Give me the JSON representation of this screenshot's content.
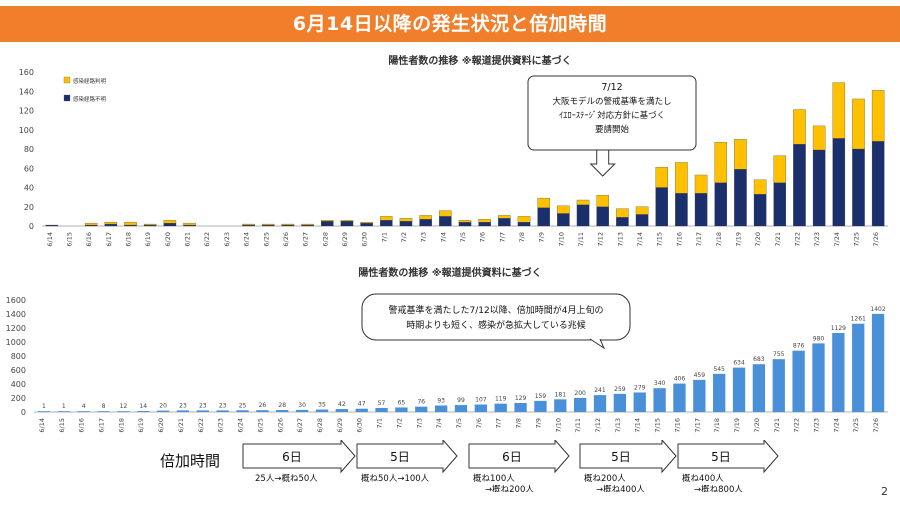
{
  "header": {
    "title": "6月14日以降の発生状況と倍加時間"
  },
  "page_number": "2",
  "colors": {
    "banner": "#f07e2b",
    "stack_bottom": "#1a2f6b",
    "stack_top": "#ffc000",
    "line_bar": "#4a90d9"
  },
  "chart_data": [
    {
      "type": "bar",
      "title": "陽性者数の推移 ※報道提供資料に基づく",
      "stacked": true,
      "ylim": [
        0,
        160
      ],
      "yticks": [
        0,
        20,
        40,
        60,
        80,
        100,
        120,
        140,
        160
      ],
      "grid": false,
      "legend_position": "top-left",
      "categories": [
        "6/14",
        "6/15",
        "6/16",
        "6/17",
        "6/18",
        "6/19",
        "6/20",
        "6/21",
        "6/22",
        "6/23",
        "6/24",
        "6/25",
        "6/26",
        "6/27",
        "6/28",
        "6/29",
        "6/30",
        "7/1",
        "7/2",
        "7/3",
        "7/4",
        "7/5",
        "7/6",
        "7/7",
        "7/8",
        "7/9",
        "7/10",
        "7/11",
        "7/12",
        "7/13",
        "7/14",
        "7/15",
        "7/16",
        "7/17",
        "7/18",
        "7/19",
        "7/20",
        "7/21",
        "7/22",
        "7/23",
        "7/24",
        "7/25",
        "7/26"
      ],
      "series": [
        {
          "name": "感染経路不明",
          "color": "#1a2f6b",
          "values": [
            1,
            0,
            1,
            2,
            1,
            1,
            3,
            1,
            0,
            0,
            1,
            1,
            1,
            1,
            5,
            5,
            3,
            6,
            5,
            7,
            10,
            4,
            4,
            8,
            4,
            19,
            13,
            22,
            20,
            9,
            12,
            40,
            34,
            34,
            45,
            59,
            33,
            45,
            85,
            79,
            91,
            80,
            88
          ]
        },
        {
          "name": "感染経路判明",
          "color": "#ffc000",
          "values": [
            0,
            0,
            2,
            2,
            3,
            1,
            3,
            2,
            0,
            0,
            1,
            1,
            1,
            1,
            1,
            1,
            1,
            4,
            3,
            4,
            6,
            2,
            3,
            3,
            6,
            10,
            8,
            5,
            12,
            9,
            8,
            21,
            32,
            19,
            42,
            31,
            15,
            28,
            36,
            25,
            58,
            52,
            53
          ]
        }
      ],
      "annotation": {
        "text": [
          "7/12",
          "大阪モデルの警戒基準を満たし",
          "ｲｴﾛｰｽﾃｰｼﾞ対応方針に基づく",
          "要請開始"
        ],
        "points_to": "7/12"
      }
    },
    {
      "type": "bar",
      "title": "陽性者数の推移 ※報道提供資料に基づく",
      "ylim": [
        0,
        1600
      ],
      "yticks": [
        0,
        200,
        400,
        600,
        800,
        1000,
        1200,
        1400,
        1600
      ],
      "grid": false,
      "categories": [
        "6/14",
        "6/15",
        "6/16",
        "6/17",
        "6/18",
        "6/19",
        "6/20",
        "6/21",
        "6/22",
        "6/23",
        "6/24",
        "6/25",
        "6/26",
        "6/27",
        "6/28",
        "6/29",
        "6/30",
        "7/1",
        "7/2",
        "7/3",
        "7/4",
        "7/5",
        "7/6",
        "7/7",
        "7/8",
        "7/9",
        "7/10",
        "7/11",
        "7/12",
        "7/13",
        "7/14",
        "7/15",
        "7/16",
        "7/17",
        "7/18",
        "7/19",
        "7/20",
        "7/21",
        "7/22",
        "7/23",
        "7/24",
        "7/25",
        "7/26"
      ],
      "series": [
        {
          "color": "#4a90d9",
          "values": [
            1,
            1,
            4,
            8,
            12,
            14,
            20,
            23,
            23,
            23,
            25,
            26,
            28,
            30,
            35,
            42,
            47,
            57,
            65,
            76,
            93,
            99,
            107,
            119,
            129,
            159,
            181,
            200,
            241,
            259,
            279,
            340,
            406,
            459,
            545,
            634,
            683,
            755,
            876,
            980,
            1129,
            1261,
            1402
          ]
        }
      ],
      "annotation": {
        "text": [
          "警戒基準を満たした7/12以降、倍加時間が4月上旬の",
          "時期よりも短く、感染が急拡大している兆候"
        ]
      }
    }
  ],
  "doubling": {
    "label": "倍加時間",
    "arrows": [
      {
        "days": "6日",
        "lines": [
          "25人→概ね50人"
        ]
      },
      {
        "days": "5日",
        "lines": [
          "概ね50人→100人"
        ]
      },
      {
        "days": "6日",
        "lines": [
          "概ね100人",
          "→概ね200人"
        ]
      },
      {
        "days": "5日",
        "lines": [
          "概ね200人",
          "→概ね400人"
        ]
      },
      {
        "days": "5日",
        "lines": [
          "概ね400人",
          "→概ね800人"
        ]
      }
    ]
  }
}
